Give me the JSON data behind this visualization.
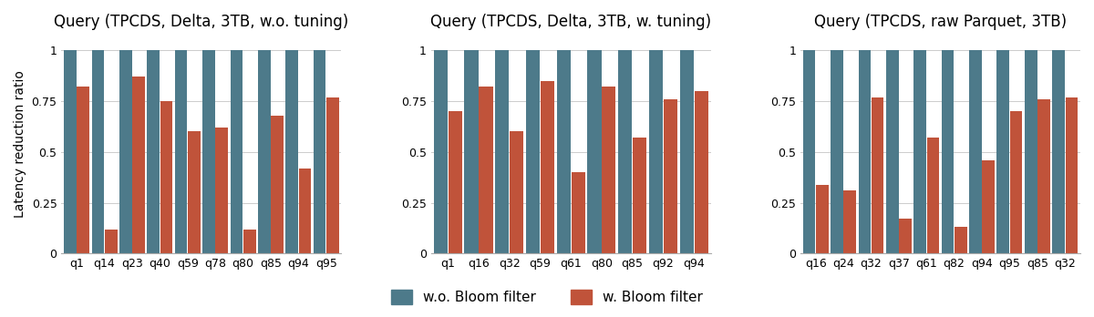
{
  "chart1": {
    "title": "Query (TPCDS, Delta, 3TB, w.o. tuning)",
    "categories": [
      "q1",
      "q14",
      "q23",
      "q40",
      "q59",
      "q78",
      "q80",
      "q85",
      "q94",
      "q95"
    ],
    "without_bloom": [
      1.0,
      1.0,
      1.0,
      1.0,
      1.0,
      1.0,
      1.0,
      1.0,
      1.0,
      1.0
    ],
    "with_bloom": [
      0.82,
      0.12,
      0.87,
      0.75,
      0.6,
      0.62,
      0.12,
      0.68,
      0.42,
      0.77
    ]
  },
  "chart2": {
    "title": "Query (TPCDS, Delta, 3TB, w. tuning)",
    "categories": [
      "q1",
      "q16",
      "q32",
      "q59",
      "q61",
      "q80",
      "q85",
      "q92",
      "q94"
    ],
    "without_bloom": [
      1.0,
      1.0,
      1.0,
      1.0,
      1.0,
      1.0,
      1.0,
      1.0,
      1.0
    ],
    "with_bloom": [
      0.7,
      0.82,
      0.6,
      0.85,
      0.4,
      0.82,
      0.57,
      0.76,
      0.8
    ]
  },
  "chart3": {
    "title": "Query (TPCDS, raw Parquet, 3TB)",
    "categories": [
      "q16",
      "q24",
      "q32",
      "q37",
      "q61",
      "q82",
      "q94",
      "q95",
      "q85",
      "q32"
    ],
    "without_bloom": [
      1.0,
      1.0,
      1.0,
      1.0,
      1.0,
      1.0,
      1.0,
      1.0,
      1.0,
      1.0
    ],
    "with_bloom": [
      0.34,
      0.31,
      0.77,
      0.17,
      0.57,
      0.13,
      0.46,
      0.7,
      0.76,
      0.77
    ]
  },
  "color_without": "#4d7a8a",
  "color_with": "#c0533a",
  "ylabel": "Latency reduction ratio",
  "legend_without": "w.o. Bloom filter",
  "legend_with": "w. Bloom filter",
  "background_color": "#ffffff",
  "title_fontsize": 12,
  "label_fontsize": 10,
  "tick_fontsize": 9,
  "legend_fontsize": 11
}
